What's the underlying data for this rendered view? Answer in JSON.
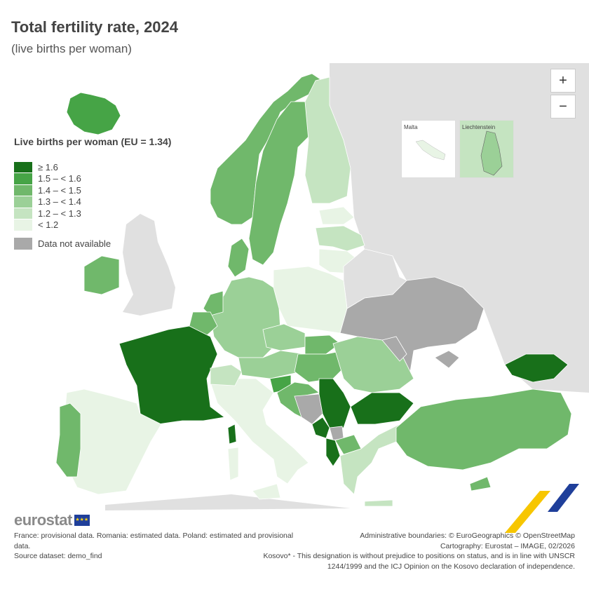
{
  "title": "Total fertility rate, 2024",
  "subtitle": "(live births per woman)",
  "legend": {
    "title": "Live births per woman (EU = 1.34)",
    "classes": [
      {
        "label": "≥ 1.6",
        "color": "#18701a"
      },
      {
        "label": "1.5 – < 1.6",
        "color": "#46a446"
      },
      {
        "label": "1.4 – < 1.5",
        "color": "#70b86b"
      },
      {
        "label": "1.3 – < 1.4",
        "color": "#9bd097"
      },
      {
        "label": "1.2 – < 1.3",
        "color": "#c5e4c1"
      },
      {
        "label": "< 1.2",
        "color": "#e8f4e5"
      }
    ],
    "na": {
      "label": "Data not available",
      "color": "#a9a9a9"
    }
  },
  "controls": {
    "zoom_in": "+",
    "zoom_out": "−"
  },
  "insets": {
    "malta": "Malta",
    "liechtenstein": "Liechtenstein"
  },
  "logo": "eurostat",
  "footer": {
    "notes": "France: provisional data. Romania: estimated data. Poland: estimated and provisional data.",
    "source": "Source dataset: demo_find",
    "boundaries": "Administrative boundaries: © EuroGeographics © OpenStreetMap",
    "cartography": "Cartography: Eurostat – IMAGE, 02/2026",
    "kosovo": "Kosovo* - This designation is without prejudice to positions on status, and is in line with UNSCR 1244/1999 and the ICJ Opinion on the Kosovo declaration of independence."
  }
}
